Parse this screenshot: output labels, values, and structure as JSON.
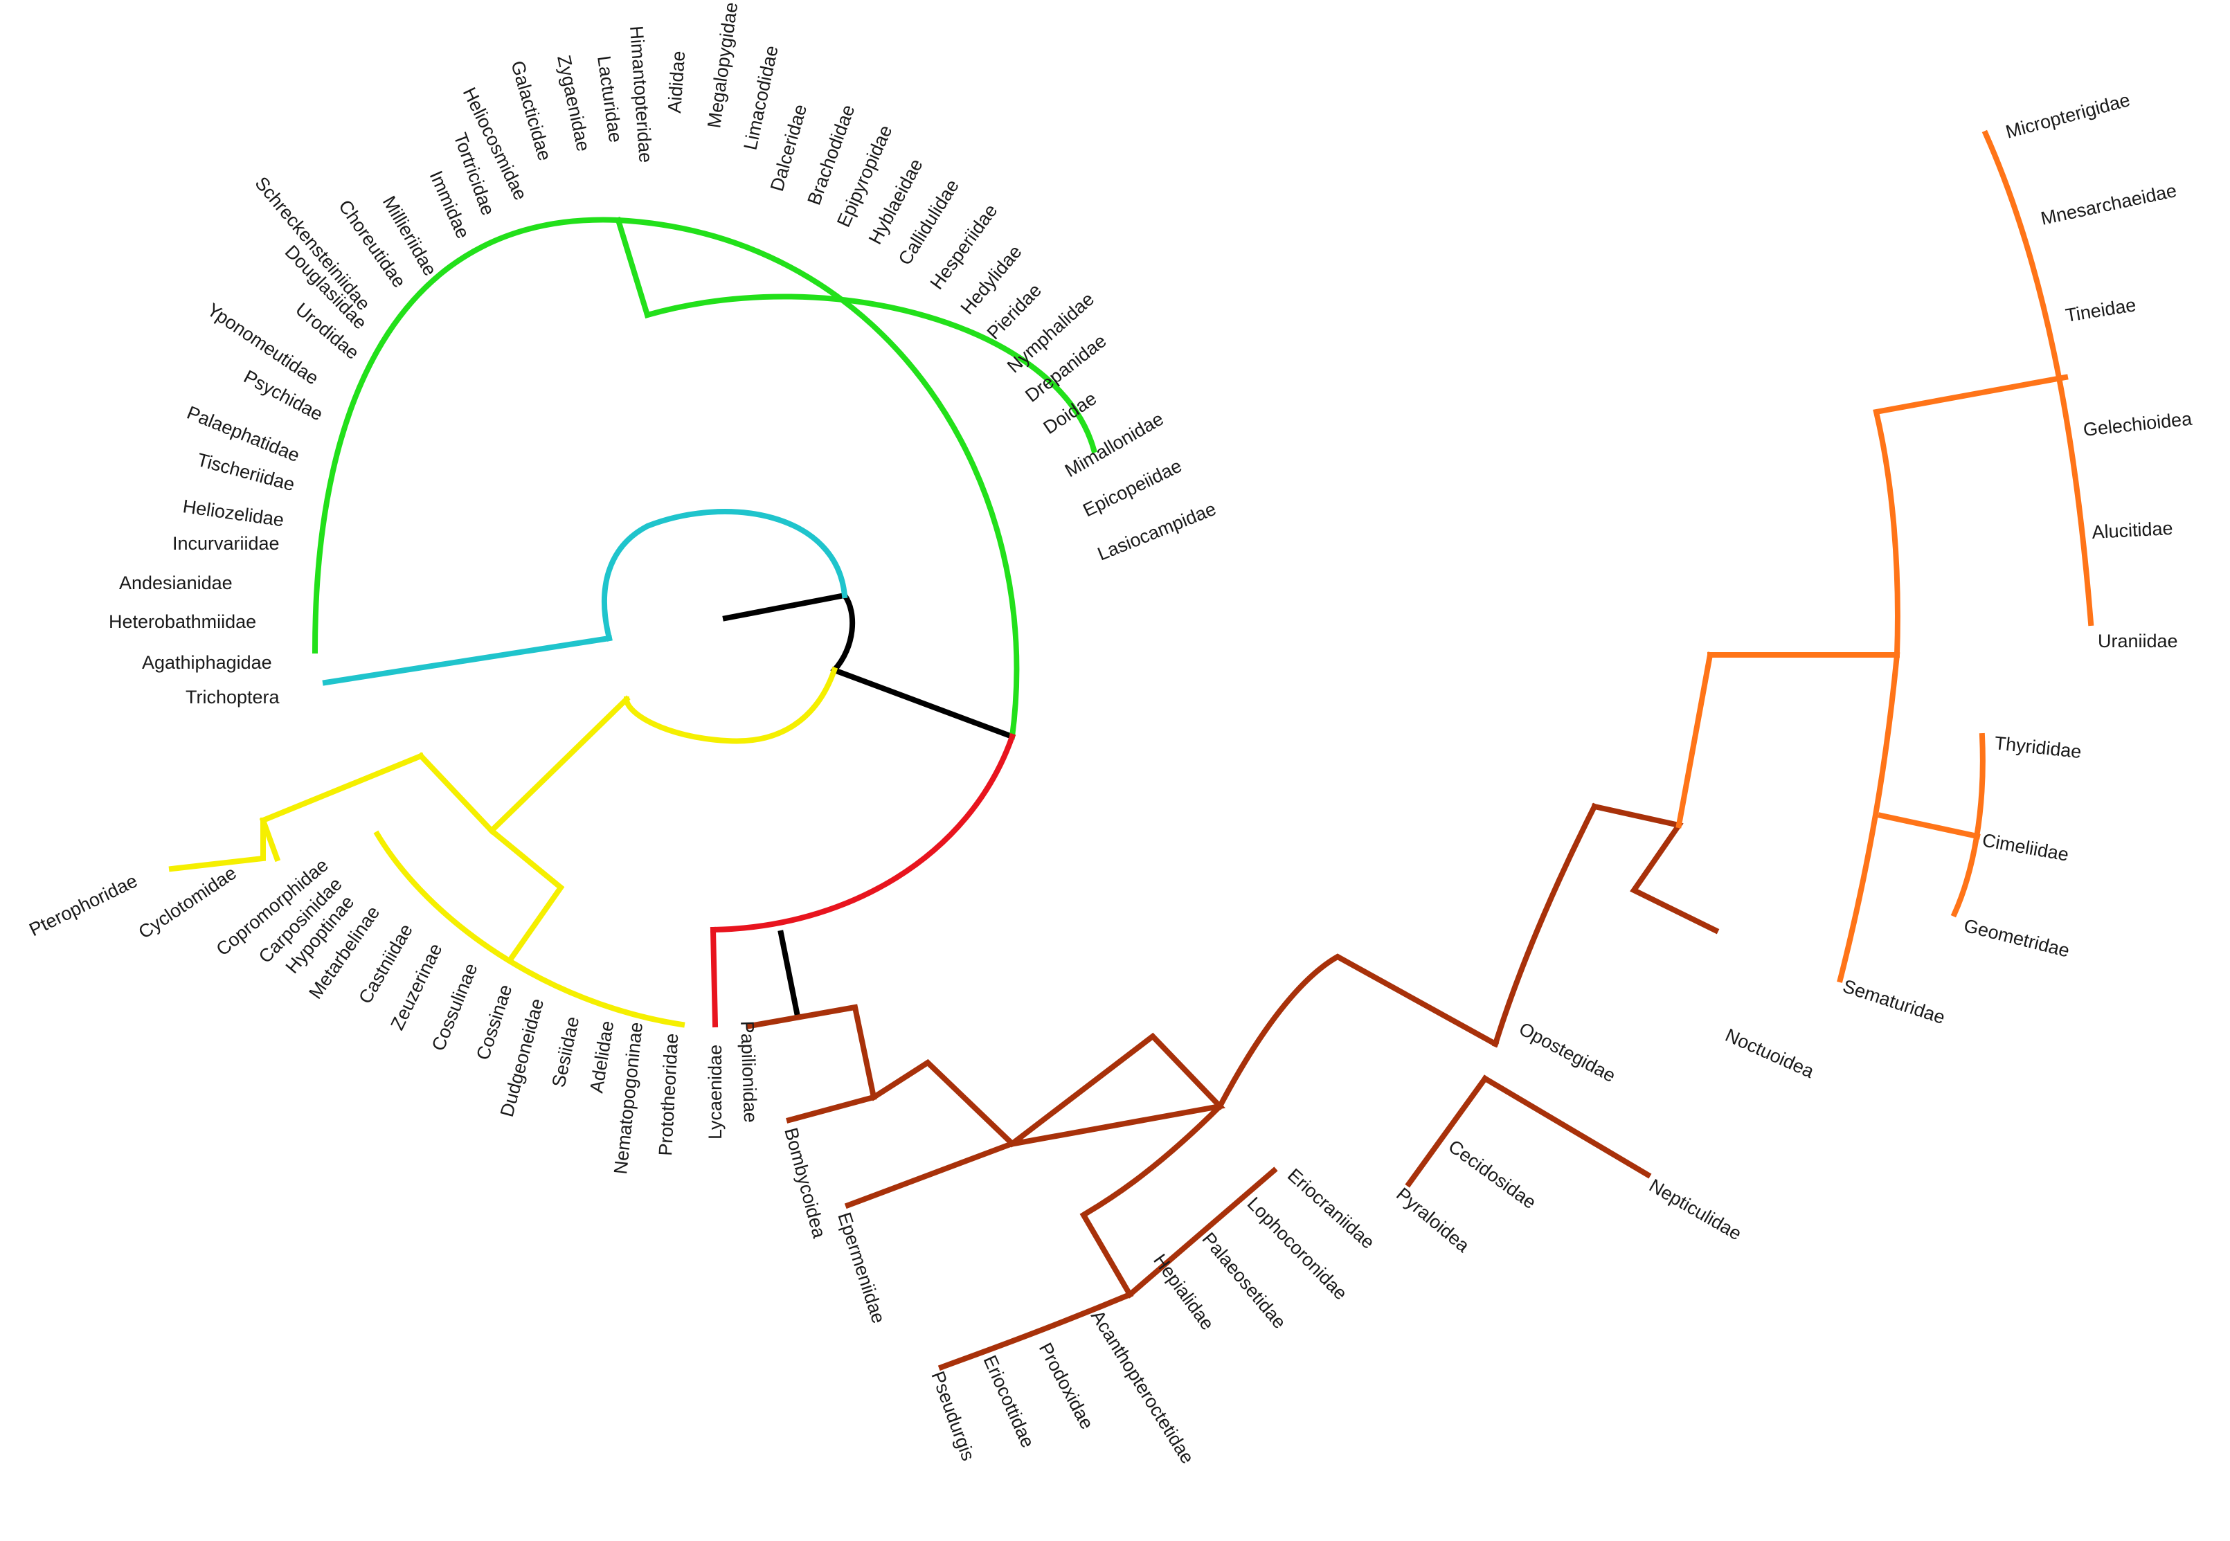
{
  "colors": {
    "root": "#000000",
    "trichoptera_clade": "#1fc4cc",
    "green_clade": "#22e01a",
    "yellow_clade": "#f5ef00",
    "red_clade": "#e8141e",
    "brown_clade": "#a8310a",
    "orange_clade": "#ff7418"
  },
  "taxa": {
    "t_trichoptera": "Trichoptera",
    "t_agathiphagidae": "Agathiphagidae",
    "t_heterobathmiidae": "Heterobathmiidae",
    "t_andesianidae": "Andesianidae",
    "t_incurvariidae": "Incurvariidae",
    "t_heliozelidae": "Heliozelidae",
    "t_tischeriidae": "Tischeriidae",
    "t_palaephatidae": "Palaephatidae",
    "t_psychidae": "Psychidae",
    "t_yponomeutidae": "Yponomeutidae",
    "t_urodidae": "Urodidae",
    "t_douglasiidae": "Douglasiidae",
    "t_schreckensteiniidae": "Schreckensteiniidae",
    "t_choreutidae": "Choreutidae",
    "t_millieriidae": "Millieriidae",
    "t_heliocosmidae": "Heliocosmidae",
    "t_immidae": "Immidae",
    "t_tortricidae": "Tortricidae",
    "t_galacticidae": "Galacticidae",
    "t_zygaenidae": "Zygaenidae",
    "t_lacturidae": "Lacturidae",
    "t_himantopteridae": "Himantopteridae",
    "t_aididae": "Aididae",
    "t_megalopygidae": "Megalopygidae",
    "t_limacodidae": "Limacodidae",
    "t_dalceridae": "Dalceridae",
    "t_brachodidae": "Brachodidae",
    "t_epipyropidae": "Epipyropidae",
    "t_hyblaeidae": "Hyblaeidae",
    "t_callidulidae": "Callidulidae",
    "t_hesperiidae": "Hesperiidae",
    "t_hedylidae": "Hedylidae",
    "t_pieridae": "Pieridae",
    "t_nymphalidae": "Nymphalidae",
    "t_drepanidae": "Drepanidae",
    "t_doidae": "Doidae",
    "t_mimallonidae": "Mimallonidae",
    "t_epicopeiidae": "Epicopeiidae",
    "t_lasiocampidae": "Lasiocampidae",
    "t_pterophoridae": "Pterophoridae",
    "t_cyclotomidae": "Cyclotomidae",
    "t_copromorphidae": "Copromorphidae",
    "t_carposinidae": "Carposinidae",
    "t_hypoptinae": "Hypoptinae",
    "t_metarbelinae": "Metarbelinae",
    "t_castniidae": "Castniidae",
    "t_zeuzerinae": "Zeuzerinae",
    "t_cossulinae": "Cossulinae",
    "t_cossinae": "Cossinae",
    "t_dudgeoneidae": "Dudgeoneidae",
    "t_sesiidae": "Sesiidae",
    "t_adelidae": "Adelidae",
    "t_nematopogoninae": "Nematopogoninae",
    "t_prototheoridae": "Prototheoridae",
    "t_lycaenidae": "Lycaenidae",
    "t_papilionidae": "Papilionidae",
    "t_bombycoidea": "Bombycoidea",
    "t_epermeniidae": "Epermeniidae",
    "t_pseudurgis": "Pseudurgis",
    "t_eriocottidae": "Eriocottidae",
    "t_prodoxidae": "Prodoxidae",
    "t_acanthopteroctetidae": "Acanthopteroctetidae",
    "t_hepialidae": "Hepialidae",
    "t_palaeosetidae": "Palaeosetidae",
    "t_lophocoronidae": "Lophocoronidae",
    "t_eriocraniidae": "Eriocraniidae",
    "t_pyraloidea": "Pyraloidea",
    "t_cecidosidae": "Cecidosidae",
    "t_nepticulidae": "Nepticulidae",
    "t_opostegidae": "Opostegidae",
    "t_noctuoidea": "Noctuoidea",
    "t_sematuridae": "Sematuridae",
    "t_geometridae": "Geometridae",
    "t_cimeliidae": "Cimeliidae",
    "t_thyrididae": "Thyrididae",
    "t_uraniidae": "Uraniidae",
    "t_alucitidae": "Alucitidae",
    "t_gelechioidea": "Gelechioidea",
    "t_tineidae": "Tineidae",
    "t_mnesarchaeidae": "Mnesarchaeidae",
    "t_micropterigidae": "Micropterigidae"
  }
}
